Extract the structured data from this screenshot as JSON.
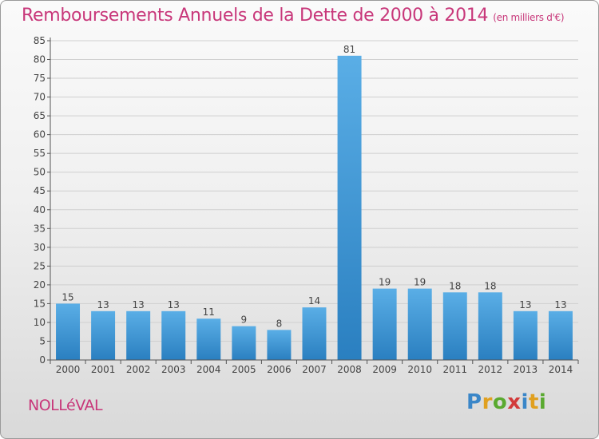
{
  "title": "Remboursements Annuels de la Dette de 2000 à 2014",
  "unit": "(en milliers d'€)",
  "commune": "NOLLéVAL",
  "logo_text": "Proxiti",
  "colors": {
    "title": "#c8377a",
    "bar_top": "#5aaee6",
    "bar_bottom": "#2a7fc0"
  },
  "chart_data": {
    "type": "bar",
    "title": "Remboursements Annuels de la Dette de 2000 à 2014",
    "subtitle": "(en milliers d'€)",
    "categories": [
      "2000",
      "2001",
      "2002",
      "2003",
      "2004",
      "2005",
      "2006",
      "2007",
      "2008",
      "2009",
      "2010",
      "2011",
      "2012",
      "2013",
      "2014"
    ],
    "values": [
      15,
      13,
      13,
      13,
      11,
      9,
      8,
      14,
      81,
      19,
      19,
      18,
      18,
      13,
      13
    ],
    "ylim": [
      0,
      85
    ],
    "yticks": [
      0,
      5,
      10,
      15,
      20,
      25,
      30,
      35,
      40,
      45,
      50,
      55,
      60,
      65,
      70,
      75,
      80,
      85
    ],
    "grid": true,
    "xlabel": "",
    "ylabel": ""
  }
}
